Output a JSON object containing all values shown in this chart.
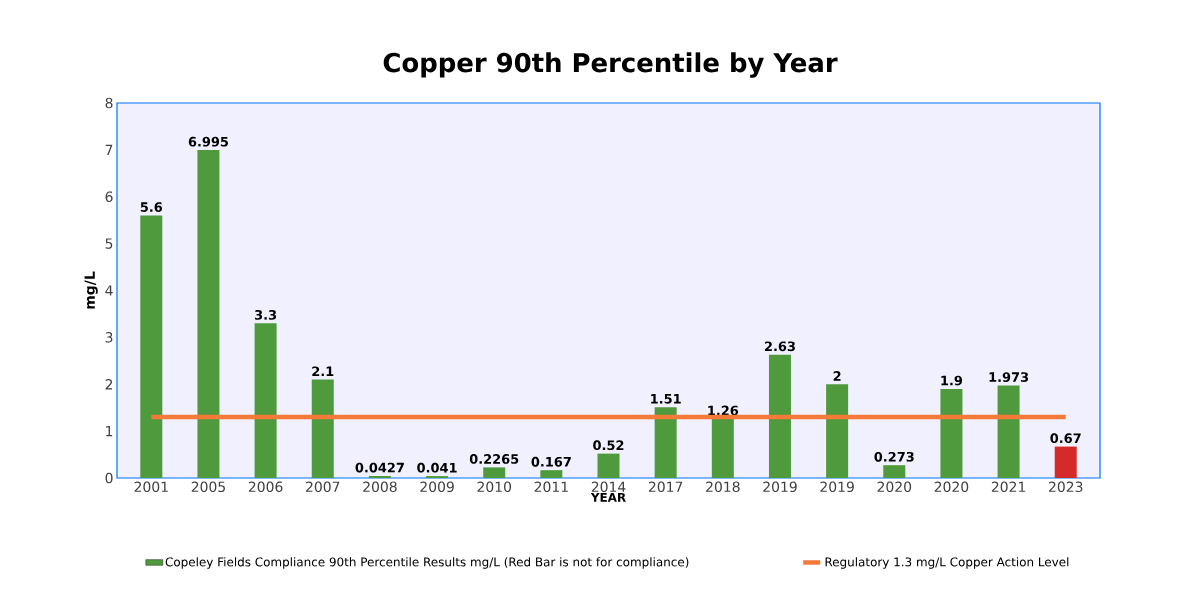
{
  "chart_data": {
    "type": "bar",
    "title": "Copper 90th Percentile by Year",
    "xlabel": "YEAR",
    "ylabel": "mg/L",
    "categories": [
      "2001",
      "2005",
      "2006",
      "2007",
      "2008",
      "2009",
      "2010",
      "2011",
      "2014",
      "2017",
      "2018",
      "2019",
      "2019",
      "2020",
      "2020",
      "2021",
      "2023"
    ],
    "series": [
      {
        "name": "Copeley Fields Compliance 90th Percentile Results mg/L (Red Bar is not for compliance)",
        "color": "#4f9a3c",
        "values": [
          5.6,
          6.995,
          3.3,
          2.1,
          0.0427,
          0.041,
          0.2265,
          0.167,
          0.52,
          1.51,
          1.26,
          2.63,
          2,
          0.273,
          1.9,
          1.973,
          0.67
        ],
        "colors": [
          "#4f9a3c",
          "#4f9a3c",
          "#4f9a3c",
          "#4f9a3c",
          "#4f9a3c",
          "#4f9a3c",
          "#4f9a3c",
          "#4f9a3c",
          "#4f9a3c",
          "#4f9a3c",
          "#4f9a3c",
          "#4f9a3c",
          "#4f9a3c",
          "#4f9a3c",
          "#4f9a3c",
          "#4f9a3c",
          "#d42a2a"
        ],
        "value_labels": [
          "5.6",
          "6.995",
          "3.3",
          "2.1",
          "0.0427",
          "0.041",
          "0.2265",
          "0.167",
          "0.52",
          "1.51",
          "1.26",
          "2.63",
          "2",
          "0.273",
          "1.9",
          "1.973",
          "0.67"
        ]
      },
      {
        "name": "Regulatory 1.3 mg/L Copper Action Level",
        "type": "line",
        "color": "#f47a3a",
        "values": [
          1.3,
          1.3,
          1.3,
          1.3,
          1.3,
          1.3,
          1.3,
          1.3,
          1.3,
          1.3,
          1.3,
          1.3,
          1.3,
          1.3,
          1.3,
          1.3,
          1.3
        ]
      }
    ],
    "ylim": [
      0,
      8
    ],
    "yticks": [
      0,
      1,
      2,
      3,
      4,
      5,
      6,
      7,
      8
    ],
    "legend": "bottom",
    "grid": false
  }
}
